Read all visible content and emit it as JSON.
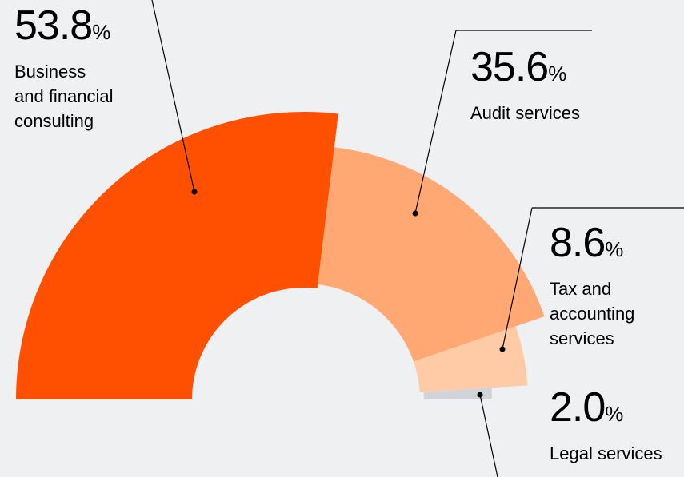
{
  "chart_data": {
    "type": "pie",
    "categories": [
      "Business and financial consulting",
      "Audit services",
      "Tax and accounting services",
      "Legal services"
    ],
    "values": [
      53.8,
      35.6,
      8.6,
      2.0
    ],
    "value_labels": [
      "53.8",
      "35.6",
      "8.6",
      "2.0"
    ],
    "unit": "%",
    "colors": [
      "#fe5000",
      "#ffa873",
      "#ffcba6",
      "#d0d3d8"
    ]
  }
}
